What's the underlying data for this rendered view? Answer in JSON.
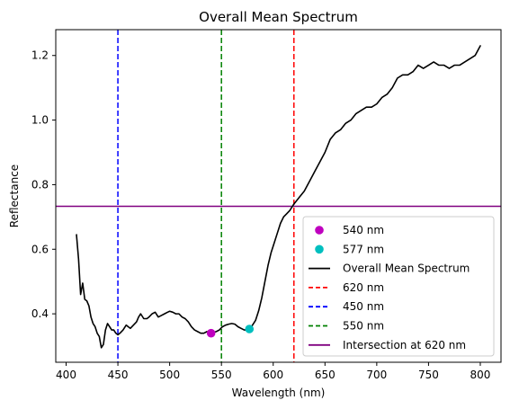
{
  "chart_data": {
    "type": "line",
    "title": "Overall Mean Spectrum",
    "xlabel": "Wavelength (nm)",
    "ylabel": "Reflectance",
    "xlim": [
      390,
      820
    ],
    "ylim": [
      0.25,
      1.28
    ],
    "grid": false,
    "legend_position": "lower-right",
    "x_ticks": [
      400,
      450,
      500,
      550,
      600,
      650,
      700,
      750,
      800
    ],
    "y_ticks": [
      0.4,
      0.6,
      0.8,
      1.0,
      1.2
    ],
    "x_tick_labels": [
      "400",
      "450",
      "500",
      "550",
      "600",
      "650",
      "700",
      "750",
      "800"
    ],
    "y_tick_labels": [
      "0.4",
      "0.6",
      "0.8",
      "1.0",
      "1.2"
    ],
    "series": [
      {
        "name": "Overall Mean Spectrum",
        "kind": "line",
        "color": "#000000",
        "x": [
          410,
          412,
          414,
          416,
          418,
          420,
          422,
          424,
          426,
          428,
          430,
          432,
          434,
          436,
          438,
          440,
          442,
          444,
          446,
          448,
          450,
          452,
          455,
          458,
          460,
          462,
          465,
          468,
          470,
          472,
          475,
          478,
          480,
          483,
          486,
          489,
          492,
          495,
          498,
          500,
          503,
          506,
          509,
          512,
          515,
          518,
          521,
          524,
          527,
          530,
          533,
          536,
          539,
          542,
          545,
          548,
          551,
          554,
          557,
          560,
          563,
          566,
          569,
          572,
          575,
          578,
          580,
          583,
          586,
          589,
          592,
          595,
          598,
          601,
          604,
          607,
          610,
          613,
          616,
          620,
          625,
          630,
          635,
          640,
          645,
          650,
          655,
          660,
          665,
          670,
          675,
          680,
          685,
          690,
          695,
          700,
          705,
          710,
          715,
          720,
          725,
          730,
          735,
          740,
          745,
          750,
          755,
          760,
          765,
          770,
          775,
          780,
          785,
          790,
          795,
          800
        ],
        "values": [
          0.645,
          0.57,
          0.46,
          0.495,
          0.445,
          0.44,
          0.425,
          0.39,
          0.37,
          0.36,
          0.34,
          0.33,
          0.295,
          0.305,
          0.35,
          0.37,
          0.36,
          0.35,
          0.35,
          0.34,
          0.335,
          0.34,
          0.35,
          0.365,
          0.36,
          0.355,
          0.365,
          0.375,
          0.39,
          0.4,
          0.385,
          0.385,
          0.39,
          0.4,
          0.405,
          0.39,
          0.395,
          0.4,
          0.405,
          0.408,
          0.405,
          0.4,
          0.4,
          0.39,
          0.385,
          0.375,
          0.36,
          0.35,
          0.345,
          0.34,
          0.34,
          0.345,
          0.34,
          0.342,
          0.345,
          0.35,
          0.36,
          0.365,
          0.368,
          0.37,
          0.368,
          0.36,
          0.355,
          0.35,
          0.35,
          0.355,
          0.365,
          0.38,
          0.41,
          0.45,
          0.5,
          0.55,
          0.59,
          0.62,
          0.65,
          0.68,
          0.7,
          0.71,
          0.72,
          0.74,
          0.76,
          0.78,
          0.81,
          0.84,
          0.87,
          0.9,
          0.94,
          0.96,
          0.97,
          0.99,
          1.0,
          1.02,
          1.03,
          1.04,
          1.04,
          1.05,
          1.07,
          1.08,
          1.1,
          1.13,
          1.14,
          1.14,
          1.15,
          1.17,
          1.16,
          1.17,
          1.18,
          1.17,
          1.17,
          1.16,
          1.17,
          1.17,
          1.18,
          1.19,
          1.2,
          1.23
        ]
      },
      {
        "name": "540 nm",
        "kind": "marker",
        "color": "#bf00bf",
        "x": [
          540
        ],
        "values": [
          0.34
        ]
      },
      {
        "name": "577 nm",
        "kind": "marker",
        "color": "#00bfbf",
        "x": [
          577
        ],
        "values": [
          0.353
        ]
      },
      {
        "name": "620 nm",
        "kind": "vline",
        "color": "#ff0000",
        "dashed": true,
        "x": [
          620
        ]
      },
      {
        "name": "450 nm",
        "kind": "vline",
        "color": "#0000ff",
        "dashed": true,
        "x": [
          450
        ]
      },
      {
        "name": "550 nm",
        "kind": "vline",
        "color": "#008000",
        "dashed": true,
        "x": [
          550
        ]
      },
      {
        "name": "Intersection at 620 nm",
        "kind": "hline",
        "color": "#800080",
        "values": [
          0.733
        ]
      }
    ],
    "legend_entries": [
      {
        "label": "540 nm",
        "kind": "marker",
        "color": "#bf00bf"
      },
      {
        "label": "577 nm",
        "kind": "marker",
        "color": "#00bfbf"
      },
      {
        "label": "Overall Mean Spectrum",
        "kind": "line",
        "color": "#000000"
      },
      {
        "label": "620 nm",
        "kind": "dashed",
        "color": "#ff0000"
      },
      {
        "label": "450 nm",
        "kind": "dashed",
        "color": "#0000ff"
      },
      {
        "label": "550 nm",
        "kind": "dashed",
        "color": "#008000"
      },
      {
        "label": "Intersection at 620 nm",
        "kind": "line",
        "color": "#800080"
      }
    ]
  }
}
